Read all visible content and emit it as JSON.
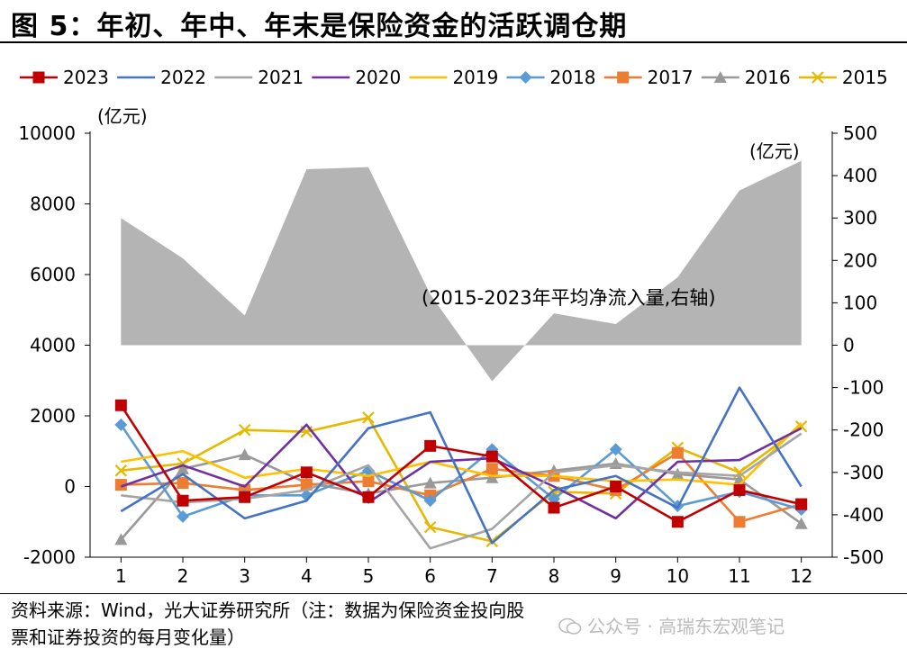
{
  "figure_title": "图 5：年初、年中、年末是保险资金的活跃调仓期",
  "source_note": "资料来源：Wind，光大证券研究所（注：数据为保险资金投向股票和证券投资的每月变化量）",
  "watermark": "公众号 · 高瑞东宏观笔记",
  "chart_data": {
    "type": "line",
    "title": "",
    "x": [
      1,
      2,
      3,
      4,
      5,
      6,
      7,
      8,
      9,
      10,
      11,
      12
    ],
    "xlim": [
      0.5,
      12.5
    ],
    "y_left": {
      "unit_label": "(亿元)",
      "ylim": [
        -2000,
        10000
      ],
      "ticks": [
        -2000,
        0,
        2000,
        4000,
        6000,
        8000,
        10000
      ]
    },
    "y_right": {
      "unit_label": "(亿元)",
      "ylim": [
        -500,
        500
      ],
      "ticks": [
        -500,
        -400,
        -300,
        -200,
        -100,
        0,
        100,
        200,
        300,
        400,
        500
      ]
    },
    "area_series": {
      "name": "(2015-2023年平均净流入量,右轴)",
      "axis": "right",
      "color": "#b4b4b4",
      "values": [
        300,
        205,
        70,
        415,
        420,
        120,
        -85,
        75,
        50,
        160,
        365,
        435
      ]
    },
    "series": [
      {
        "name": "2023",
        "color": "#c00000",
        "marker": "square",
        "values": [
          2300,
          -400,
          -300,
          400,
          -300,
          1150,
          850,
          -600,
          0,
          -1000,
          -100,
          -500
        ]
      },
      {
        "name": "2022",
        "color": "#4472c4",
        "marker": "none",
        "values": [
          -700,
          350,
          -900,
          -400,
          1650,
          2100,
          -1600,
          -100,
          300,
          -600,
          2800,
          0
        ]
      },
      {
        "name": "2021",
        "color": "#a5a5a5",
        "marker": "none",
        "values": [
          -250,
          -450,
          -350,
          -100,
          600,
          -1750,
          -1200,
          400,
          600,
          400,
          300,
          1500
        ]
      },
      {
        "name": "2020",
        "color": "#7030a0",
        "marker": "none",
        "values": [
          0,
          600,
          0,
          1750,
          -450,
          700,
          800,
          0,
          -900,
          700,
          750,
          1650
        ]
      },
      {
        "name": "2019",
        "color": "#ffc000",
        "marker": "none",
        "values": [
          700,
          1000,
          250,
          500,
          300,
          700,
          300,
          300,
          150,
          200,
          50,
          1800
        ]
      },
      {
        "name": "2018",
        "color": "#5b9bd5",
        "marker": "diamond",
        "values": [
          1750,
          -850,
          -250,
          -250,
          450,
          -400,
          1050,
          -350,
          1050,
          -550,
          -150,
          -650
        ]
      },
      {
        "name": "2017",
        "color": "#ed7d31",
        "marker": "square",
        "values": [
          50,
          100,
          -100,
          50,
          150,
          -250,
          500,
          300,
          -100,
          950,
          -1000,
          -500
        ]
      },
      {
        "name": "2016",
        "color": "#999999",
        "marker": "triangle",
        "values": [
          -1500,
          500,
          900,
          100,
          -200,
          100,
          250,
          450,
          650,
          350,
          200,
          -1050
        ]
      },
      {
        "name": "2015",
        "color": "#e6b800",
        "marker": "x",
        "values": [
          450,
          650,
          1600,
          1550,
          1950,
          -1150,
          -1550,
          -150,
          -200,
          1100,
          400,
          1700
        ]
      }
    ],
    "legend_position": "top",
    "grid": false
  }
}
